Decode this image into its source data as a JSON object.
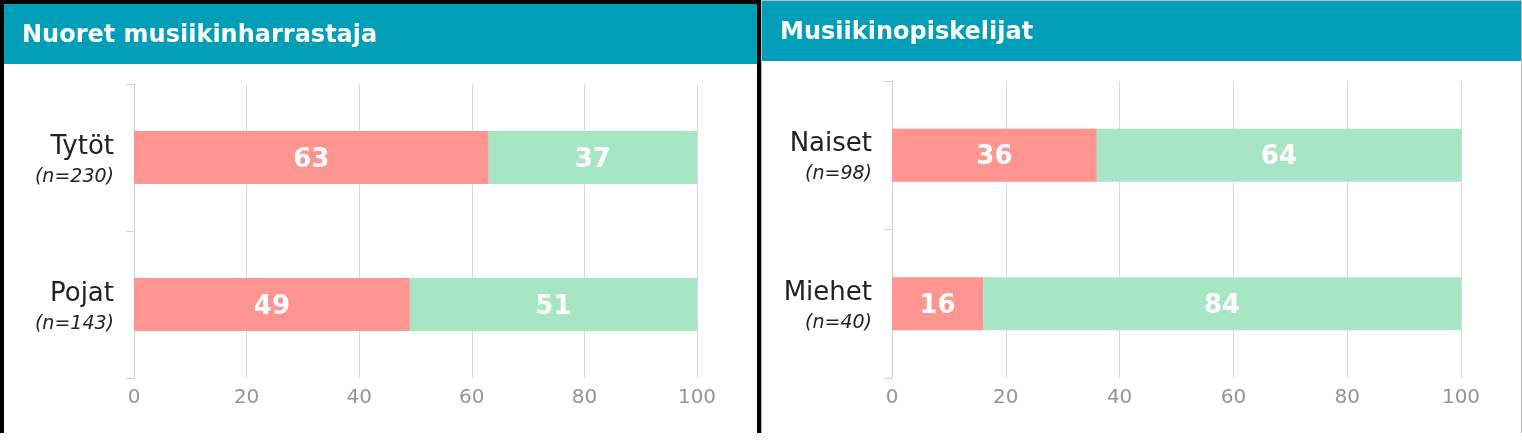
{
  "chart_data": [
    {
      "type": "bar",
      "title": "Nuoret musiikinharrastaja",
      "orientation": "horizontal",
      "stacked": true,
      "categories": [
        "Tytöt\n(n=230)",
        "Pojat\n(n=143)"
      ],
      "series": [
        {
          "color": "#ff9490",
          "values": [
            63,
            49
          ]
        },
        {
          "color": "#a6e6c4",
          "values": [
            37,
            51
          ]
        }
      ],
      "xlim": [
        0,
        100
      ],
      "xticks": [
        0,
        20,
        40,
        60,
        80,
        100
      ],
      "grid": "x",
      "data_labels": true
    },
    {
      "type": "bar",
      "title": "Musiikinopiskelijat",
      "orientation": "horizontal",
      "stacked": true,
      "categories": [
        "Naiset\n(n=98)",
        "Miehet\n(n=40)"
      ],
      "series": [
        {
          "color": "#ff9490",
          "values": [
            36,
            16
          ]
        },
        {
          "color": "#a6e6c4",
          "values": [
            64,
            84
          ]
        }
      ],
      "xlim": [
        0,
        100
      ],
      "xticks": [
        0,
        20,
        40,
        60,
        80,
        100
      ],
      "grid": "x",
      "data_labels": true
    }
  ]
}
